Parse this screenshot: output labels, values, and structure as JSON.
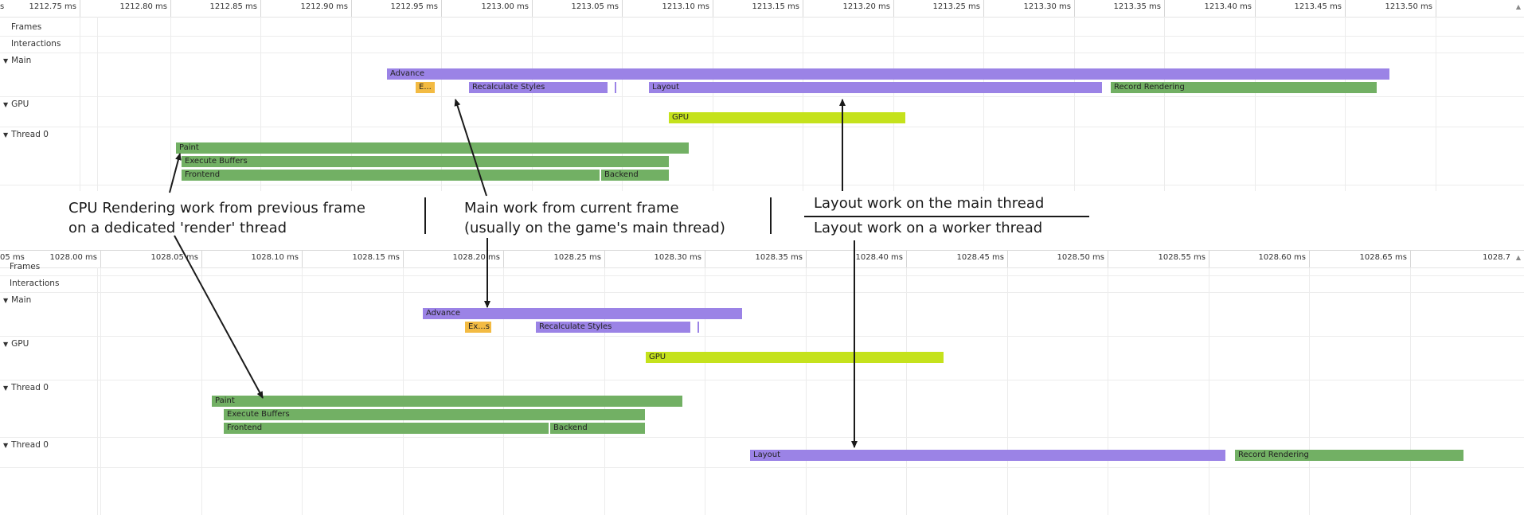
{
  "top": {
    "ruler_ticks": [
      "1212.75 ms",
      "1212.80 ms",
      "1212.85 ms",
      "1212.90 ms",
      "1212.95 ms",
      "1213.00 ms",
      "1213.05 ms",
      "1213.10 ms",
      "1213.15 ms",
      "1213.20 ms",
      "1213.25 ms",
      "1213.30 ms",
      "1213.35 ms",
      "1213.40 ms",
      "1213.45 ms",
      "1213.50 ms"
    ],
    "left_edge_tick": "s",
    "tracks": {
      "frames": "Frames",
      "interactions": "Interactions",
      "main": "Main",
      "gpu": "GPU",
      "thread0": "Thread 0"
    },
    "bars": {
      "advance": "Advance",
      "evaluate": "E...",
      "recalc": "Recalculate Styles",
      "layout": "Layout",
      "record": "Record Rendering",
      "gpu": "GPU",
      "paint": "Paint",
      "execute": "Execute Buffers",
      "frontend": "Frontend",
      "backend": "Backend"
    }
  },
  "bottom": {
    "ruler_ticks": [
      "1028.00 ms",
      "1028.05 ms",
      "1028.10 ms",
      "1028.15 ms",
      "1028.20 ms",
      "1028.25 ms",
      "1028.30 ms",
      "1028.35 ms",
      "1028.40 ms",
      "1028.45 ms",
      "1028.50 ms",
      "1028.55 ms",
      "1028.60 ms",
      "1028.65 ms"
    ],
    "left_edge_tick": "05 ms",
    "right_edge_tick": "1028.7",
    "tracks": {
      "frames": "Frames",
      "interactions": "Interactions",
      "main": "Main",
      "gpu": "GPU",
      "thread0": "Thread 0",
      "thread0b": "Thread 0"
    },
    "bars": {
      "advance": "Advance",
      "evaluate": "Ex...s",
      "recalc": "Recalculate Styles",
      "gpu": "GPU",
      "paint": "Paint",
      "execute": "Execute Buffers",
      "frontend": "Frontend",
      "backend": "Backend",
      "layout": "Layout",
      "record": "Record Rendering"
    }
  },
  "annotations": {
    "cpu_line1": "CPU Rendering work from previous frame",
    "cpu_line2": "on a dedicated 'render' thread",
    "main_line1": "Main work from current frame",
    "main_line2": "(usually on the game's main thread)",
    "layout_main": "Layout work on the main thread",
    "layout_worker": "Layout work on a worker thread"
  },
  "colors": {
    "purple": "#9b83e6",
    "green": "#72b064",
    "lime": "#c5e21c",
    "orange": "#f3bb43"
  }
}
